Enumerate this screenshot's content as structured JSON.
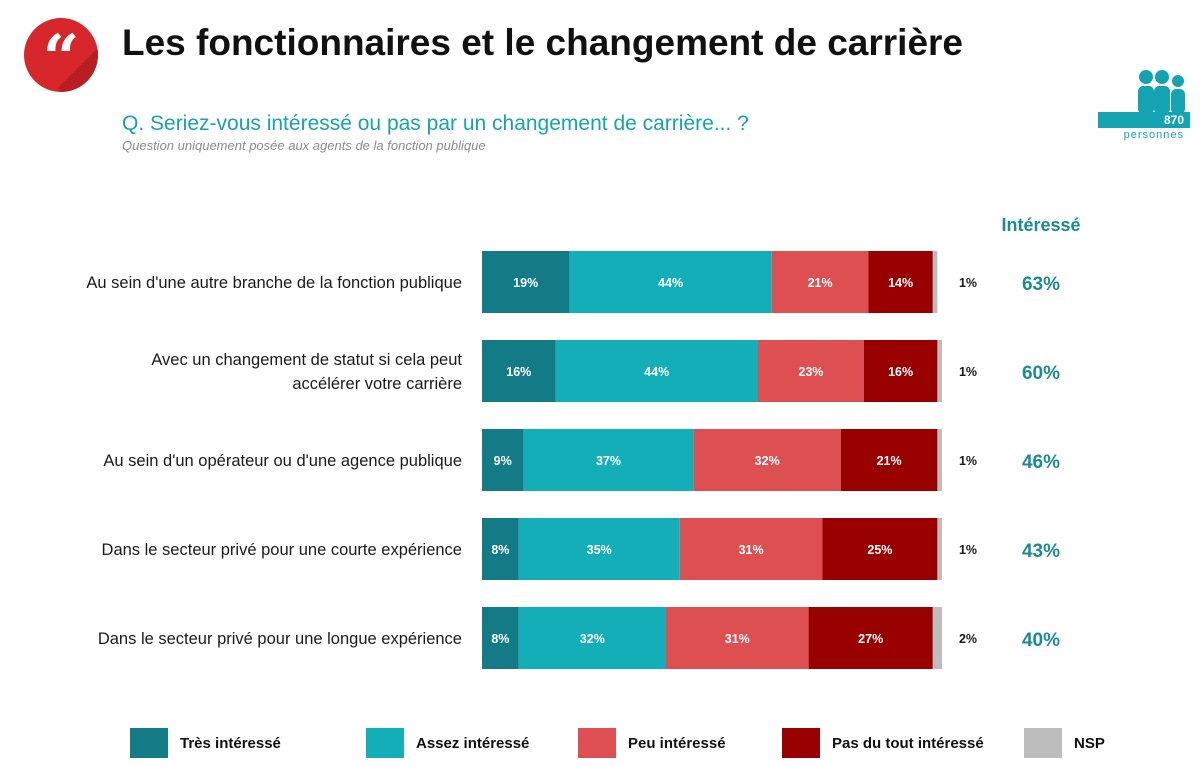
{
  "header": {
    "title": "Les fonctionnaires et le changement de carrière",
    "question": "Q. Seriez-vous intéressé ou pas par un changement de carrière... ?",
    "note": "Question uniquement posée aux agents de la fonction publique",
    "logo_icon": "quote-icon"
  },
  "sample": {
    "count": "870",
    "unit": "personnes",
    "icon": "people-icon"
  },
  "chart_data": {
    "type": "bar",
    "orientation": "horizontal",
    "stacked": true,
    "categories": [
      "Au sein d'une autre branche de la fonction publique",
      "Avec un changement de statut si cela peut accélérer votre carrière",
      "Au sein d'un opérateur ou d'une agence publique",
      "Dans le secteur privé pour une courte expérience",
      "Dans le secteur privé pour une longue expérience"
    ],
    "series": [
      {
        "name": "Très intéressé",
        "color": "#137b86",
        "values": [
          19,
          16,
          9,
          8,
          8
        ]
      },
      {
        "name": "Assez intéressé",
        "color": "#14aeb9",
        "values": [
          44,
          44,
          37,
          35,
          32
        ]
      },
      {
        "name": "Peu intéressé",
        "color": "#de4f52",
        "values": [
          21,
          23,
          32,
          31,
          31
        ]
      },
      {
        "name": "Pas du tout intéressé",
        "color": "#990000",
        "values": [
          14,
          16,
          21,
          25,
          27
        ]
      },
      {
        "name": "NSP",
        "color": "#bdbdbd",
        "values": [
          1,
          1,
          1,
          1,
          2
        ]
      }
    ],
    "value_suffix": "%",
    "summary_header": "Intéressé",
    "summary_values": [
      "63%",
      "60%",
      "46%",
      "43%",
      "40%"
    ],
    "summary_color": "#1b8a94",
    "legend_position": "bottom",
    "grid": false
  }
}
